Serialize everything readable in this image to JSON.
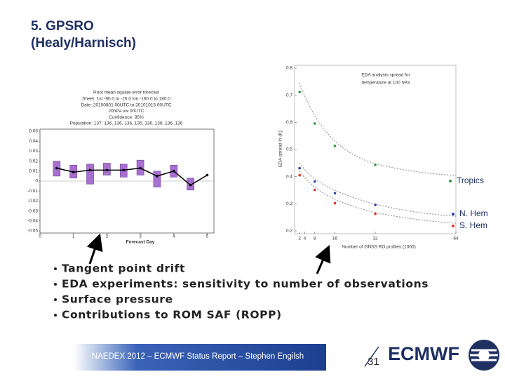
{
  "slide": {
    "title": [
      "5. GPSRO",
      "(Healy/Harnisch)"
    ],
    "bullets": [
      "Tangent point drift",
      "EDA experiments: sensitivity to number of observations",
      "Surface pressure",
      "Contributions to ROM SAF (ROPP)"
    ],
    "footer": {
      "text": "NAEDEX 2012 – ECMWF Status Report – Stephen Engilsh",
      "page": "31",
      "logo": "ECMWF"
    }
  },
  "chart_data": [
    {
      "type": "box-line",
      "title": [
        "Root mean square error forecast",
        "Sheet: 1st -90.0 to -20.0 lon -180.0 to 180.0",
        "Date: 20100801 00UTC to 20101015 00UTC",
        "20hPa vw 00UTC",
        "Confidence: 95%",
        "Population: 137, 136, 136, 136, 135, 136, 136, 136, 136"
      ],
      "x_label": "Forecast Day",
      "x": [
        0.5,
        1,
        1.5,
        2,
        2.5,
        3,
        3.5,
        4,
        4.5,
        5
      ],
      "values": [
        0.013,
        0.009,
        0.011,
        0.011,
        0.011,
        0.013,
        0.005,
        0.01,
        -0.004,
        0.006
      ],
      "low": [
        0.005,
        0.003,
        -0.003,
        0.006,
        0.004,
        0.006,
        -0.006,
        0.004,
        -0.009,
        null
      ],
      "high": [
        0.02,
        0.016,
        0.017,
        0.018,
        0.017,
        0.021,
        0.01,
        0.016,
        0.003,
        null
      ],
      "line_color": "#000000",
      "box_color": "#a86fd0",
      "xlim": [
        0,
        5.2
      ],
      "xticks": [
        0,
        1,
        2,
        3,
        4,
        5
      ],
      "ylim": [
        -0.05,
        0.05
      ],
      "yticks": [
        0.05,
        0.04,
        0.03,
        0.02,
        0.01,
        0,
        -0.01,
        -0.02,
        -0.03,
        -0.04,
        -0.05
      ]
    },
    {
      "type": "scatter",
      "annotation": [
        "EDA analysis spread for",
        "temperature at 100 hPa"
      ],
      "x_label": "Number of GNSS RO profiles (1000)",
      "y_label": "EDA spread in (K)",
      "x": [
        2,
        8,
        16,
        32
      ],
      "series": [
        {
          "name": "Tropics",
          "color": "#2e9e3e",
          "values": [
            0.712,
            0.596,
            0.513,
            0.443
          ]
        },
        {
          "name": "N. Hem",
          "color": "#2b3fae",
          "values": [
            0.431,
            0.382,
            0.339,
            0.296
          ]
        },
        {
          "name": "S. Hem",
          "color": "#e0302a",
          "values": [
            0.405,
            0.351,
            0.302,
            0.263
          ]
        }
      ],
      "legend": "right",
      "xlim": [
        0,
        64
      ],
      "xticks": [
        2,
        4,
        8,
        16,
        32,
        64
      ],
      "ylim": [
        0.2,
        0.8
      ],
      "yticks": [
        0.2,
        0.3,
        0.4,
        0.5,
        0.6,
        0.7,
        0.8
      ]
    }
  ]
}
